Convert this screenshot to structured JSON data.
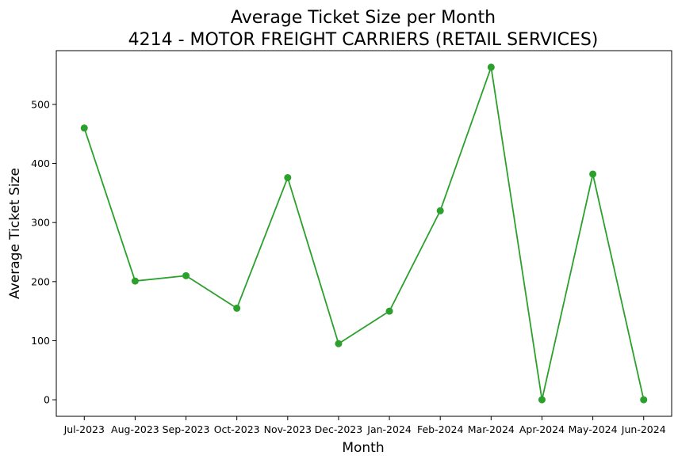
{
  "chart_data": {
    "type": "line",
    "title": "Average Ticket Size per Month",
    "subtitle": "4214 - MOTOR FREIGHT CARRIERS (RETAIL SERVICES)",
    "xlabel": "Month",
    "ylabel": "Average Ticket Size",
    "categories": [
      "Jul-2023",
      "Aug-2023",
      "Sep-2023",
      "Oct-2023",
      "Nov-2023",
      "Dec-2023",
      "Jan-2024",
      "Feb-2024",
      "Mar-2024",
      "Apr-2024",
      "May-2024",
      "Jun-2024"
    ],
    "series": [
      {
        "values": [
          460,
          201,
          210,
          155,
          376,
          95,
          150,
          320,
          563,
          0,
          382,
          0
        ],
        "color": "#2ca02c",
        "marker": "circle"
      }
    ],
    "yticks": [
      0,
      100,
      200,
      300,
      400,
      500
    ],
    "ylim": [
      -28,
      591
    ],
    "grid": false,
    "legend": "none"
  }
}
